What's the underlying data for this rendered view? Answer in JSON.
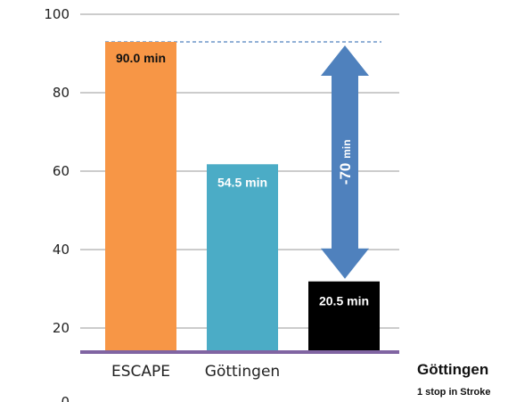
{
  "chart_data": {
    "type": "bar",
    "categories": [
      "ESCAPE",
      "Göttingen",
      "Göttingen"
    ],
    "category_labels": [
      "ESCAPE",
      "Göttingen",
      ""
    ],
    "values": [
      90.0,
      54.5,
      20.5
    ],
    "data_labels": [
      "90.0 min",
      "54.5 min",
      "20.5 min"
    ],
    "colors": [
      "#F79646",
      "#4BACC6",
      "#000000"
    ],
    "data_label_colors": [
      "#111111",
      "#ffffff",
      "#ffffff"
    ],
    "y_ticks": [
      "0",
      "20",
      "40",
      "60",
      "80",
      "100"
    ],
    "ylim": [
      0,
      100
    ],
    "grid": true,
    "baseline_color": "#8064A2",
    "reference_line": {
      "value": 90.0,
      "style": "dashed",
      "color": "#4F81BD"
    },
    "arrow": {
      "from": 90.0,
      "to": 20.5,
      "label": "-70 min",
      "color": "#4F81BD"
    },
    "side_label": {
      "title": "Göttingen",
      "subtitle": "1 stop in Stroke"
    }
  }
}
